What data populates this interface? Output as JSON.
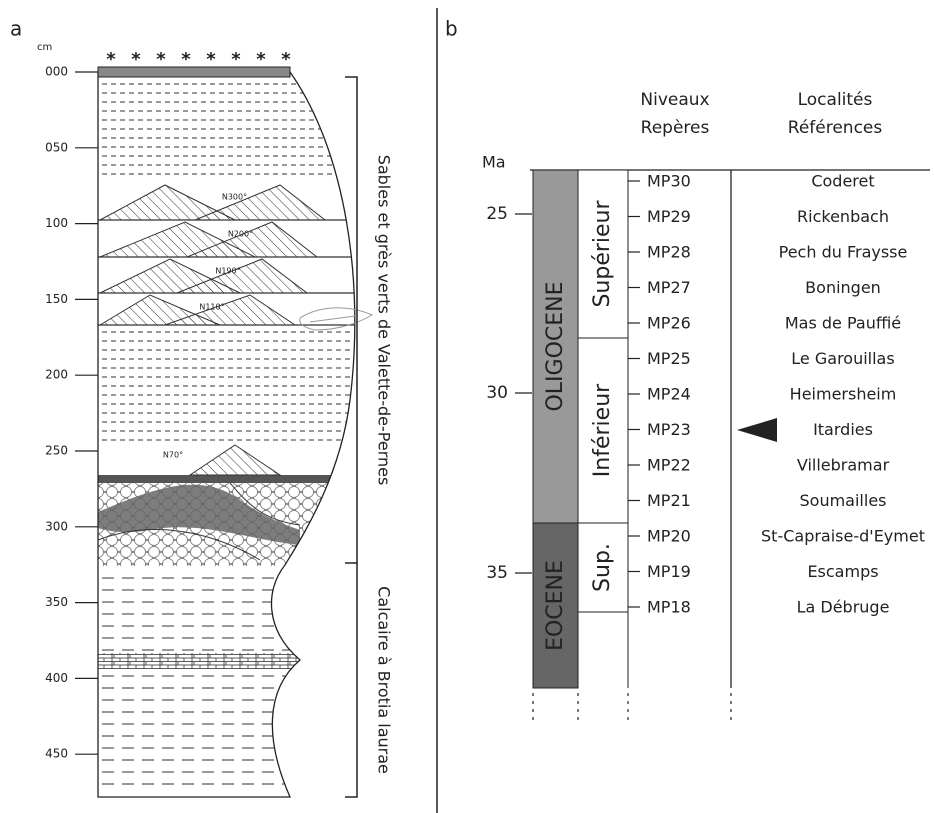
{
  "panel_a": {
    "label": "a",
    "unit": "cm",
    "depths": [
      "000",
      "050",
      "100",
      "150",
      "200",
      "250",
      "300",
      "350",
      "400",
      "450"
    ],
    "bedding": [
      "N300°",
      "N200°",
      "N190°",
      "N110°",
      "N70°"
    ],
    "units": [
      "Sables et grès verts de Valette-de-Pernes",
      "Calcaire à Brotia laurae"
    ]
  },
  "panel_b": {
    "label": "b",
    "headers": {
      "levels": [
        "Niveaux",
        "Repères"
      ],
      "localities": [
        "Localités",
        "Références"
      ]
    },
    "age_unit": "Ma",
    "ages": [
      "25",
      "30",
      "35"
    ],
    "epochs": [
      "OLIGOCENE",
      "EOCENE"
    ],
    "subepochs": [
      "Supérieur",
      "Inférieur",
      "Sup."
    ],
    "levels": [
      {
        "mp": "MP30",
        "locality": "Coderet"
      },
      {
        "mp": "MP29",
        "locality": "Rickenbach"
      },
      {
        "mp": "MP28",
        "locality": "Pech du Fraysse"
      },
      {
        "mp": "MP27",
        "locality": "Boningen"
      },
      {
        "mp": "MP26",
        "locality": "Mas de Pauffié"
      },
      {
        "mp": "MP25",
        "locality": "Le Garouillas"
      },
      {
        "mp": "MP24",
        "locality": "Heimersheim"
      },
      {
        "mp": "MP23",
        "locality": "Itardies"
      },
      {
        "mp": "MP22",
        "locality": "Villebramar"
      },
      {
        "mp": "MP21",
        "locality": "Soumailles"
      },
      {
        "mp": "MP20",
        "locality": "St-Capraise-d'Eymet"
      },
      {
        "mp": "MP19",
        "locality": "Escamps"
      },
      {
        "mp": "MP18",
        "locality": "La Débruge"
      }
    ]
  }
}
